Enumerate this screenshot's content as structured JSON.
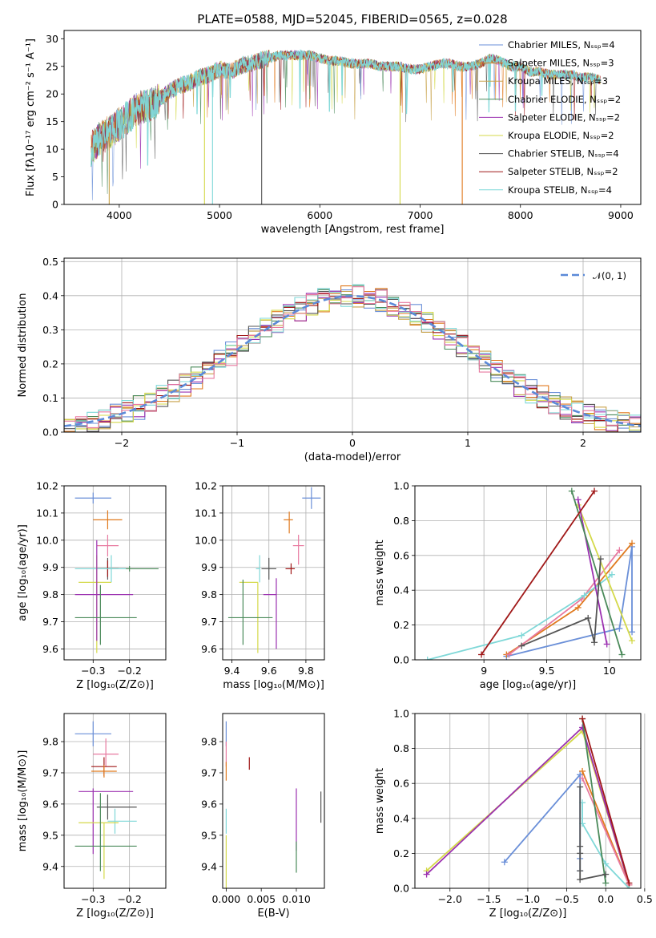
{
  "colors": [
    "#6a8fd8",
    "#e07a1f",
    "#c8a24a",
    "#4a8a5a",
    "#9b30b0",
    "#d4d94a",
    "#555555",
    "#a01818",
    "#7fd8d8",
    "#e87aa0"
  ],
  "chart_data": [
    {
      "id": "spectrum",
      "type": "line",
      "title": "PLATE=0588, MJD=52045, FIBERID=0565, z=0.028",
      "xlabel": "wavelength [Angstrom, rest frame]",
      "ylabel": "Flux [fλ10⁻¹⁷ erg cm⁻² s⁻¹ A⁻¹]",
      "xlim": [
        3450,
        9200
      ],
      "ylim": [
        0,
        31.5
      ],
      "xticks": [
        4000,
        5000,
        6000,
        7000,
        8000,
        9000
      ],
      "yticks": [
        0,
        5,
        10,
        15,
        20,
        25,
        30
      ],
      "grid": false,
      "legend_position": "top-right",
      "legend": [
        "Chabrier MILES, Nₛₛₚ=4",
        "Salpeter MILES, Nₛₛₚ=3",
        "Kroupa MILES, Nₛₛₚ=3",
        "Chabrier ELODIE, Nₛₛₚ=2",
        "Salpeter ELODIE, Nₛₛₚ=2",
        "Kroupa ELODIE, Nₛₛₚ=2",
        "Chabrier STELIB, Nₛₛₚ=4",
        "Salpeter STELIB, Nₛₛₚ=2",
        "Kroupa STELIB, Nₛₛₚ=4"
      ],
      "legend_colors": [
        0,
        1,
        2,
        3,
        4,
        5,
        6,
        7,
        8
      ],
      "continuum": {
        "x": [
          3720,
          3800,
          3900,
          4000,
          4100,
          4200,
          4300,
          4400,
          4500,
          4600,
          4700,
          4800,
          4900,
          5000,
          5100,
          5200,
          5300,
          5400,
          5500,
          5600,
          5700,
          5800,
          5900,
          6000,
          6100,
          6200,
          6300,
          6400,
          6500,
          6600,
          6700,
          6800,
          6900,
          7000,
          7100,
          7200,
          7300,
          7400,
          7500,
          7600,
          7700,
          7800,
          7900,
          8000,
          8100,
          8200,
          8300,
          8400,
          8500,
          8600,
          8700,
          8800
        ],
        "y": [
          10,
          12,
          13,
          14.5,
          16,
          17.5,
          18,
          19,
          20.5,
          21.5,
          22,
          23,
          23.5,
          24.5,
          24,
          25,
          25.5,
          26,
          26.5,
          27,
          27,
          27,
          27,
          26.5,
          26,
          26,
          25.5,
          25.5,
          25.5,
          25,
          25,
          25,
          24.5,
          24.5,
          25,
          25.5,
          25.5,
          25,
          25,
          25.5,
          26.5,
          26,
          25,
          25,
          24,
          24,
          23.5,
          23.5,
          23.5,
          23,
          23,
          22.5
        ]
      },
      "dips": [
        {
          "x": 3900,
          "series": 2
        },
        {
          "x": 4850,
          "series": 5
        },
        {
          "x": 4930,
          "series": 8
        },
        {
          "x": 5420,
          "series": 6
        },
        {
          "x": 6800,
          "series": 5
        },
        {
          "x": 7420,
          "series": 1
        }
      ]
    },
    {
      "id": "residuals",
      "type": "histogram",
      "xlabel": "(data-model)/error",
      "ylabel": "Normed distribution",
      "xlim": [
        -2.5,
        2.5
      ],
      "ylim": [
        0,
        0.51
      ],
      "xticks": [
        -2,
        -1,
        0,
        1,
        2
      ],
      "yticks": [
        0.0,
        0.1,
        0.2,
        0.3,
        0.4,
        0.5
      ],
      "grid": true,
      "legend_position": "top-right",
      "legend": [
        "𝒩(0, 1)"
      ],
      "bin_width": 0.1
    },
    {
      "id": "age-vs-Z",
      "type": "errorbar",
      "xlabel": "Z [log₁₀(Z/Z⊙)]",
      "ylabel": "age  [log₁₀(age/yr)]",
      "xlim": [
        -0.38,
        -0.1
      ],
      "ylim": [
        9.56,
        10.2
      ],
      "xticks": [
        -0.3,
        -0.2
      ],
      "xticklabels": [
        "−0.3",
        "−0.2"
      ],
      "yticks": [
        9.6,
        9.7,
        9.8,
        9.9,
        10.0,
        10.1,
        10.2
      ],
      "grid": true,
      "points": [
        {
          "x": -0.3,
          "xerr": [
            0.05,
            0.05
          ],
          "y": 10.155,
          "yerr": [
            0.02,
            0.02
          ],
          "c": 0
        },
        {
          "x": -0.26,
          "xerr": [
            0.04,
            0.04
          ],
          "y": 10.075,
          "yerr": [
            0.035,
            0.035
          ],
          "c": 1
        },
        {
          "x": -0.26,
          "xerr": [
            0.03,
            0.03
          ],
          "y": 9.98,
          "yerr": [
            0.04,
            0.04
          ],
          "c": 9
        },
        {
          "x": -0.26,
          "xerr": [
            0.03,
            0.03
          ],
          "y": 9.895,
          "yerr": [
            0.04,
            0.04
          ],
          "c": 6
        },
        {
          "x": -0.26,
          "xerr": [
            0.03,
            0.03
          ],
          "y": 9.895,
          "yerr": [
            0.03,
            0.03
          ],
          "c": 7
        },
        {
          "x": -0.2,
          "xerr": [
            0.08,
            0.08
          ],
          "y": 9.895,
          "yerr": [
            0.01,
            0.01
          ],
          "c": 3
        },
        {
          "x": -0.25,
          "xerr": [
            0.1,
            0.04
          ],
          "y": 9.895,
          "yerr": [
            0.05,
            0.05
          ],
          "c": 8
        },
        {
          "x": -0.29,
          "xerr": [
            0.05,
            0.04
          ],
          "y": 9.845,
          "yerr": [
            0.26,
            0.1
          ],
          "c": 5
        },
        {
          "x": -0.29,
          "xerr": [
            0.06,
            0.1
          ],
          "y": 9.8,
          "yerr": [
            0.17,
            0.2
          ],
          "c": 4
        },
        {
          "x": -0.28,
          "xerr": [
            0.07,
            0.1
          ],
          "y": 9.715,
          "yerr": [
            0.1,
            0.12
          ],
          "c": 3
        }
      ]
    },
    {
      "id": "age-vs-mass",
      "type": "errorbar",
      "xlabel": "mass [log₁₀(M/M⊙)]",
      "ylabel": "",
      "xlim": [
        9.35,
        9.9
      ],
      "ylim": [
        9.56,
        10.2
      ],
      "xticks": [
        9.4,
        9.6,
        9.8
      ],
      "yticks": [
        9.6,
        9.7,
        9.8,
        9.9,
        10.0,
        10.1,
        10.2
      ],
      "grid": true,
      "points": [
        {
          "x": 9.83,
          "xerr": [
            0.05,
            0.05
          ],
          "y": 10.155,
          "yerr": [
            0.04,
            0.04
          ],
          "c": 0
        },
        {
          "x": 9.71,
          "xerr": [
            0.03,
            0.02
          ],
          "y": 10.075,
          "yerr": [
            0.05,
            0.03
          ],
          "c": 1
        },
        {
          "x": 9.76,
          "xerr": [
            0.03,
            0.03
          ],
          "y": 9.98,
          "yerr": [
            0.07,
            0.04
          ],
          "c": 9
        },
        {
          "x": 9.6,
          "xerr": [
            0.04,
            0.04
          ],
          "y": 9.895,
          "yerr": [
            0.04,
            0.04
          ],
          "c": 6
        },
        {
          "x": 9.72,
          "xerr": [
            0.03,
            0.02
          ],
          "y": 9.895,
          "yerr": [
            0.02,
            0.02
          ],
          "c": 7
        },
        {
          "x": 9.55,
          "xerr": [
            0.02,
            0.0
          ],
          "y": 9.895,
          "yerr": [
            0.05,
            0.05
          ],
          "c": 8
        },
        {
          "x": 9.54,
          "xerr": [
            0.1,
            0.0
          ],
          "y": 9.845,
          "yerr": [
            0.26,
            0.0
          ],
          "c": 5
        },
        {
          "x": 9.64,
          "xerr": [
            0.07,
            0.0
          ],
          "y": 9.8,
          "yerr": [
            0.2,
            0.06
          ],
          "c": 4
        },
        {
          "x": 9.46,
          "xerr": [
            0.08,
            0.16
          ],
          "y": 9.715,
          "yerr": [
            0.1,
            0.14
          ],
          "c": 3
        }
      ]
    },
    {
      "id": "mass-weight-vs-age",
      "type": "line",
      "xlabel": "age  [log₁₀(age/yr)]",
      "ylabel": "mass weight",
      "xlim": [
        8.45,
        10.25
      ],
      "ylim": [
        0,
        1.0
      ],
      "xticks": [
        9.0,
        9.5,
        10.0
      ],
      "yticks": [
        0.0,
        0.2,
        0.4,
        0.6,
        0.8,
        1.0
      ],
      "grid": true,
      "series": [
        {
          "c": 0,
          "x": [
            9.18,
            10.08,
            10.18,
            10.18
          ],
          "y": [
            0.02,
            0.18,
            0.65,
            0.16
          ]
        },
        {
          "c": 1,
          "x": [
            9.18,
            9.75,
            10.18
          ],
          "y": [
            0.03,
            0.3,
            0.67
          ]
        },
        {
          "c": 9,
          "x": [
            9.2,
            9.78,
            10.08
          ],
          "y": [
            0.03,
            0.35,
            0.63
          ]
        },
        {
          "c": 8,
          "x": [
            8.55,
            9.3,
            9.8,
            10.02
          ],
          "y": [
            0.0,
            0.14,
            0.37,
            0.49
          ]
        },
        {
          "c": 5,
          "x": [
            9.75,
            10.18
          ],
          "y": [
            0.89,
            0.11
          ]
        },
        {
          "c": 4,
          "x": [
            9.75,
            9.98
          ],
          "y": [
            0.92,
            0.09
          ]
        },
        {
          "c": 3,
          "x": [
            9.7,
            10.1
          ],
          "y": [
            0.97,
            0.03
          ]
        },
        {
          "c": 7,
          "x": [
            8.98,
            9.88
          ],
          "y": [
            0.03,
            0.97
          ]
        },
        {
          "c": 6,
          "x": [
            9.3,
            9.83,
            9.88,
            9.93
          ],
          "y": [
            0.08,
            0.24,
            0.1,
            0.58
          ]
        }
      ]
    },
    {
      "id": "mass-vs-Z",
      "type": "errorbar",
      "xlabel": "Z [log₁₀(Z/Z⊙)]",
      "ylabel": "mass [log₁₀(M/M⊙)]",
      "xlim": [
        -0.38,
        -0.1
      ],
      "ylim": [
        9.33,
        9.89
      ],
      "xticks": [
        -0.3,
        -0.2
      ],
      "xticklabels": [
        "−0.3",
        "−0.2"
      ],
      "yticks": [
        9.4,
        9.5,
        9.6,
        9.7,
        9.8
      ],
      "grid": true,
      "points": [
        {
          "x": -0.3,
          "xerr": [
            0.05,
            0.05
          ],
          "y": 9.825,
          "yerr": [
            0.04,
            0.04
          ],
          "c": 0
        },
        {
          "x": -0.265,
          "xerr": [
            0.035,
            0.035
          ],
          "y": 9.76,
          "yerr": [
            0.04,
            0.05
          ],
          "c": 9
        },
        {
          "x": -0.27,
          "xerr": [
            0.035,
            0.035
          ],
          "y": 9.72,
          "yerr": [
            0.03,
            0.03
          ],
          "c": 7
        },
        {
          "x": -0.27,
          "xerr": [
            0.035,
            0.035
          ],
          "y": 9.705,
          "yerr": [
            0.02,
            0.02
          ],
          "c": 1
        },
        {
          "x": -0.3,
          "xerr": [
            0.04,
            0.11
          ],
          "y": 9.64,
          "yerr": [
            0.2,
            0.01
          ],
          "c": 4
        },
        {
          "x": -0.26,
          "xerr": [
            0.03,
            0.08
          ],
          "y": 9.59,
          "yerr": [
            0.04,
            0.04
          ],
          "c": 6
        },
        {
          "x": -0.24,
          "xerr": [
            0.02,
            0.06
          ],
          "y": 9.545,
          "yerr": [
            0.04,
            0.04
          ],
          "c": 8
        },
        {
          "x": -0.27,
          "xerr": [
            0.07,
            0.04
          ],
          "y": 9.54,
          "yerr": [
            0.18,
            0.0
          ],
          "c": 5
        },
        {
          "x": -0.28,
          "xerr": [
            0.07,
            0.1
          ],
          "y": 9.465,
          "yerr": [
            0.08,
            0.17
          ],
          "c": 3
        }
      ]
    },
    {
      "id": "mass-vs-EBV",
      "type": "errorbar",
      "xlabel": "E(B-V)",
      "ylabel": "",
      "xlim": [
        -0.0005,
        0.014
      ],
      "ylim": [
        9.33,
        9.89
      ],
      "xticks": [
        0.0,
        0.005,
        0.01
      ],
      "xticklabels": [
        "0.000",
        "0.005",
        "0.010"
      ],
      "yticks": [
        9.4,
        9.5,
        9.6,
        9.7,
        9.8
      ],
      "grid": false,
      "points": [
        {
          "x": 0.0,
          "xerr": [
            0,
            0
          ],
          "y": 9.825,
          "yerr": [
            0.04,
            0.04
          ],
          "c": 0
        },
        {
          "x": 0.0,
          "xerr": [
            0,
            0
          ],
          "y": 9.76,
          "yerr": [
            0.04,
            0.04
          ],
          "c": 9
        },
        {
          "x": 0.0,
          "xerr": [
            0,
            0
          ],
          "y": 9.705,
          "yerr": [
            0.03,
            0.03
          ],
          "c": 1
        },
        {
          "x": 0.0,
          "xerr": [
            0,
            0
          ],
          "y": 9.545,
          "yerr": [
            0.04,
            0.04
          ],
          "c": 8
        },
        {
          "x": 0.0,
          "xerr": [
            0,
            0
          ],
          "y": 9.4,
          "yerr": [
            0.1,
            0.1
          ],
          "c": 5
        },
        {
          "x": 0.0033,
          "xerr": [
            0,
            0
          ],
          "y": 9.73,
          "yerr": [
            0.02,
            0.02
          ],
          "c": 7
        },
        {
          "x": 0.01,
          "xerr": [
            0,
            0
          ],
          "y": 9.55,
          "yerr": [
            0.1,
            0.1
          ],
          "c": 4
        },
        {
          "x": 0.01,
          "xerr": [
            0,
            0
          ],
          "y": 9.43,
          "yerr": [
            0.05,
            0.05
          ],
          "c": 3
        },
        {
          "x": 0.0135,
          "xerr": [
            0,
            0
          ],
          "y": 9.59,
          "yerr": [
            0.05,
            0.05
          ],
          "c": 6
        }
      ]
    },
    {
      "id": "mass-weight-vs-Z",
      "type": "line",
      "xlabel": "Z [log₁₀(Z/Z⊙)]",
      "ylabel": "mass weight",
      "xlim": [
        -2.45,
        0.45
      ],
      "ylim": [
        0,
        1.0
      ],
      "xticks": [
        -2.0,
        -1.5,
        -1.0,
        -0.5,
        0.0,
        0.5
      ],
      "xticklabels": [
        "−2.0",
        "−1.5",
        "−1.0",
        "−0.5",
        "0.0",
        "0.5"
      ],
      "yticks": [
        0.0,
        0.2,
        0.4,
        0.6,
        0.8,
        1.0
      ],
      "grid": true,
      "series": [
        {
          "c": 0,
          "x": [
            -1.3,
            -0.33,
            -0.33,
            -0.33
          ],
          "y": [
            0.15,
            0.65,
            0.17,
            0.1
          ]
        },
        {
          "c": 5,
          "x": [
            -2.3,
            -0.3,
            0.3
          ],
          "y": [
            0.1,
            0.9,
            0.02
          ]
        },
        {
          "c": 4,
          "x": [
            -2.3,
            -0.3,
            0.3
          ],
          "y": [
            0.08,
            0.92,
            0.02
          ]
        },
        {
          "c": 1,
          "x": [
            -0.3,
            0.3
          ],
          "y": [
            0.67,
            0.02
          ]
        },
        {
          "c": 9,
          "x": [
            -0.3,
            0.3
          ],
          "y": [
            0.63,
            0.02
          ]
        },
        {
          "c": 8,
          "x": [
            -0.3,
            -0.3,
            0.0,
            0.3
          ],
          "y": [
            0.49,
            0.37,
            0.14,
            0.0
          ]
        },
        {
          "c": 3,
          "x": [
            -0.3,
            0.0
          ],
          "y": [
            0.97,
            0.03
          ]
        },
        {
          "c": 7,
          "x": [
            -0.3,
            0.3
          ],
          "y": [
            0.97,
            0.03
          ]
        },
        {
          "c": 6,
          "x": [
            -0.33,
            -0.33,
            -0.33,
            -0.33,
            -0.33,
            0.0
          ],
          "y": [
            0.58,
            0.24,
            0.2,
            0.1,
            0.05,
            0.08
          ]
        }
      ]
    }
  ]
}
